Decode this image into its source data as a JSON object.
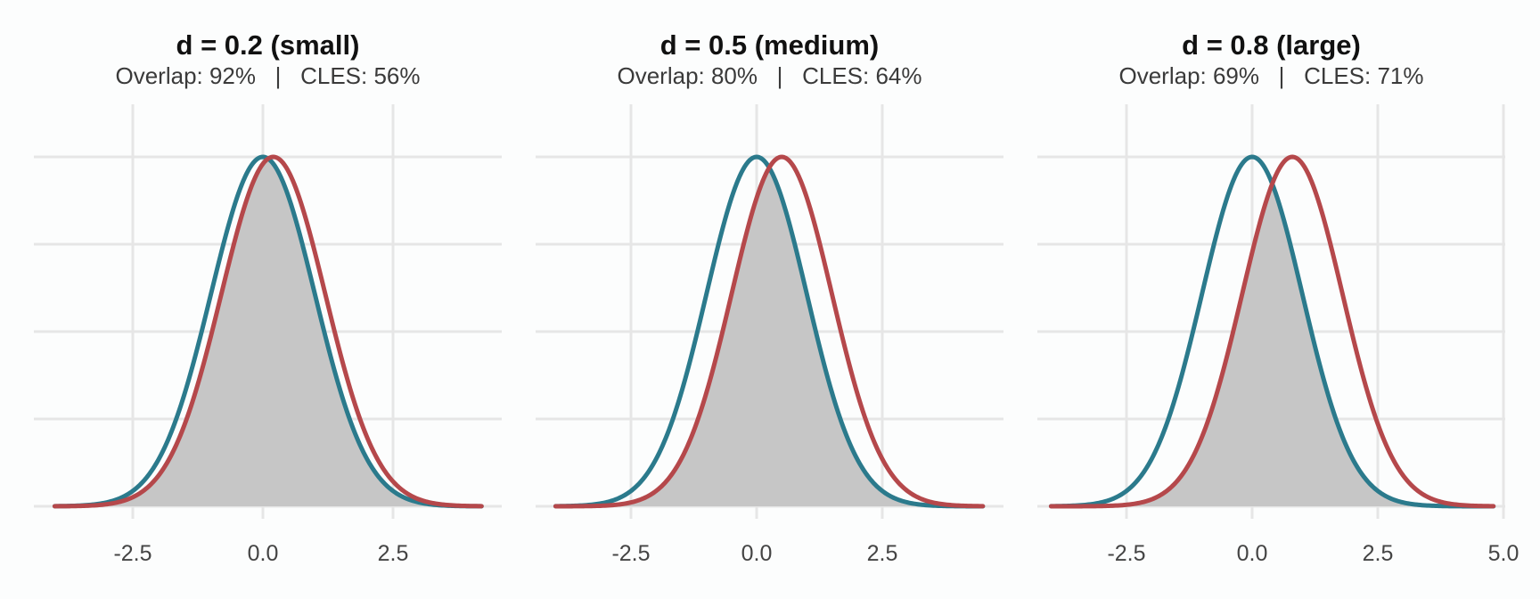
{
  "chart_data": [
    {
      "type": "line",
      "title": "d = 0.2 (small)",
      "subtitle": "Overlap: 92%   |   CLES: 56%",
      "d": 0.2,
      "xlim": [
        -4.0,
        4.2
      ],
      "x_ticks": [
        -2.5,
        0.0,
        2.5
      ],
      "x_tick_labels": [
        "-2.5",
        "0.0",
        "2.5"
      ],
      "grid": true,
      "series": [
        {
          "mean": 0.0,
          "sd": 1,
          "color": "#2b7a8c"
        },
        {
          "mean": 0.2,
          "sd": 1,
          "color": "#b5484b"
        }
      ],
      "overlap_fill": "#c6c6c6"
    },
    {
      "type": "line",
      "title": "d = 0.5 (medium)",
      "subtitle": "Overlap: 80%   |   CLES: 64%",
      "d": 0.5,
      "xlim": [
        -4.0,
        4.5
      ],
      "x_ticks": [
        -2.5,
        0.0,
        2.5
      ],
      "x_tick_labels": [
        "-2.5",
        "0.0",
        "2.5"
      ],
      "grid": true,
      "series": [
        {
          "mean": 0.0,
          "sd": 1,
          "color": "#2b7a8c"
        },
        {
          "mean": 0.5,
          "sd": 1,
          "color": "#b5484b"
        }
      ],
      "overlap_fill": "#c6c6c6"
    },
    {
      "type": "line",
      "title": "d = 0.8 (large)",
      "subtitle": "Overlap: 69%   |   CLES: 71%",
      "d": 0.8,
      "xlim": [
        -4.0,
        4.8
      ],
      "x_ticks": [
        -2.5,
        0.0,
        2.5,
        5.0
      ],
      "x_tick_labels": [
        "-2.5",
        "0.0",
        "2.5",
        "5.0"
      ],
      "grid": true,
      "series": [
        {
          "mean": 0.0,
          "sd": 1,
          "color": "#2b7a8c"
        },
        {
          "mean": 0.8,
          "sd": 1,
          "color": "#b5484b"
        }
      ],
      "overlap_fill": "#c6c6c6"
    }
  ]
}
